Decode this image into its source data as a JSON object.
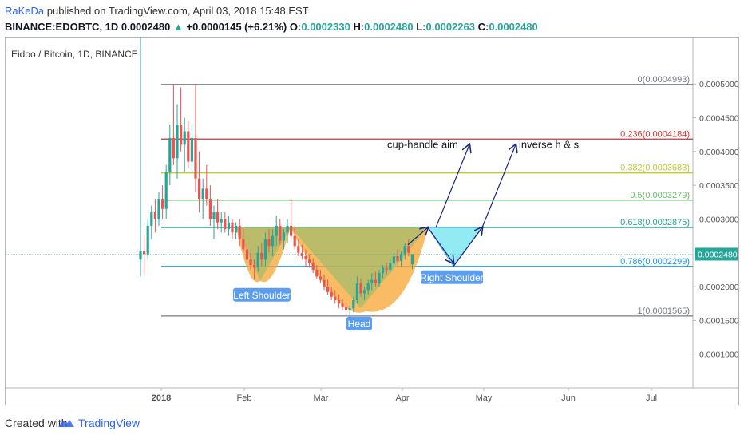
{
  "header": {
    "author": "RaKeDa",
    "published": " published on TradingView.com, April 03, 2018 15:48 EST",
    "symbol": "BINANCE:EDOBTC, 1D",
    "last": "0.0002480",
    "change": "+0.0000145 (+6.21%)",
    "o_label": "O:",
    "o_value": "0.0002330",
    "h_label": "H:",
    "h_value": "0.0002480",
    "l_label": "L:",
    "l_value": "0.0002263",
    "c_label": "C:",
    "c_value": "0.0002480"
  },
  "chart_title": "Eidoo / Bitcoin, 1D, BINANCE",
  "footer": {
    "created": "Created with",
    "brand": "TradingView"
  },
  "colors": {
    "up": "#26a69a",
    "down": "#ef5350",
    "fib0": "#787b86",
    "fib236": "#d32f2f",
    "fib382": "#c0ca33",
    "fib5": "#66bb6a",
    "fib618": "#26a69a",
    "fib786": "#2196f3",
    "fib1": "#787b86",
    "pattern_fill": "#f7a532",
    "cup_fill": "#8fbc6e",
    "handle_fill": "#7fe8f0",
    "arrow": "#1a237e",
    "label_bg": "#5c9ded",
    "price_badge": "#26a69a"
  },
  "chart_data": {
    "type": "candlestick",
    "title": "Eidoo / Bitcoin, 1D, BINANCE",
    "x_ticks": [
      "2018",
      "Feb",
      "Mar",
      "Apr",
      "May",
      "Jun",
      "Jul"
    ],
    "y_ticks": [
      "0.0005000",
      "0.0004500",
      "0.0004000",
      "0.0003500",
      "0.0003000",
      "0.0002000",
      "0.0001500",
      "0.0001000"
    ],
    "y_range": [
      5e-05,
      0.00057
    ],
    "last_price": 0.000248,
    "last_price_label": "0.0002480",
    "fib_levels": [
      {
        "ratio": "0",
        "price": 0.0004993,
        "label": "0(0.0004993)"
      },
      {
        "ratio": "0.236",
        "price": 0.0004184,
        "label": "0.236(0.0004184)"
      },
      {
        "ratio": "0.382",
        "price": 0.0003683,
        "label": "0.382(0.0003683)"
      },
      {
        "ratio": "0.5",
        "price": 0.0003279,
        "label": "0.5(0.0003279)"
      },
      {
        "ratio": "0.618",
        "price": 0.0002875,
        "label": "0.618(0.0002875)"
      },
      {
        "ratio": "0.786",
        "price": 0.0002299,
        "label": "0.786(0.0002299)"
      },
      {
        "ratio": "1",
        "price": 0.0001565,
        "label": "1(0.0001565)"
      }
    ],
    "candles": [
      {
        "o": 0.00024,
        "h": 0.0006,
        "l": 0.000215,
        "c": 0.000252
      },
      {
        "o": 0.000252,
        "h": 0.000275,
        "l": 0.000218,
        "c": 0.000248
      },
      {
        "o": 0.000248,
        "h": 0.0003,
        "l": 0.00024,
        "c": 0.00029
      },
      {
        "o": 0.00029,
        "h": 0.00032,
        "l": 0.00027,
        "c": 0.00031
      },
      {
        "o": 0.00031,
        "h": 0.00033,
        "l": 0.00028,
        "c": 0.0003
      },
      {
        "o": 0.0003,
        "h": 0.00034,
        "l": 0.00029,
        "c": 0.00033
      },
      {
        "o": 0.00033,
        "h": 0.00035,
        "l": 0.0003,
        "c": 0.000315
      },
      {
        "o": 0.000315,
        "h": 0.00038,
        "l": 0.0003,
        "c": 0.00037
      },
      {
        "o": 0.00037,
        "h": 0.00044,
        "l": 0.00035,
        "c": 0.00042
      },
      {
        "o": 0.00042,
        "h": 0.0005,
        "l": 0.00038,
        "c": 0.00039
      },
      {
        "o": 0.00039,
        "h": 0.00047,
        "l": 0.00036,
        "c": 0.00044
      },
      {
        "o": 0.00044,
        "h": 0.000495,
        "l": 0.0004,
        "c": 0.00041
      },
      {
        "o": 0.00041,
        "h": 0.00045,
        "l": 0.00037,
        "c": 0.00043
      },
      {
        "o": 0.00043,
        "h": 0.000445,
        "l": 0.000375,
        "c": 0.000385
      },
      {
        "o": 0.000385,
        "h": 0.00044,
        "l": 0.00037,
        "c": 0.00042
      },
      {
        "o": 0.00042,
        "h": 0.0005,
        "l": 0.00034,
        "c": 0.00036
      },
      {
        "o": 0.00036,
        "h": 0.0004,
        "l": 0.00031,
        "c": 0.00033
      },
      {
        "o": 0.00033,
        "h": 0.00036,
        "l": 0.0003,
        "c": 0.000345
      },
      {
        "o": 0.000345,
        "h": 0.00038,
        "l": 0.00032,
        "c": 0.00033
      },
      {
        "o": 0.00033,
        "h": 0.00035,
        "l": 0.00029,
        "c": 0.0003
      },
      {
        "o": 0.0003,
        "h": 0.00032,
        "l": 0.00027,
        "c": 0.00031
      },
      {
        "o": 0.00031,
        "h": 0.00033,
        "l": 0.000285,
        "c": 0.000295
      },
      {
        "o": 0.000295,
        "h": 0.00031,
        "l": 0.00028,
        "c": 0.0003
      },
      {
        "o": 0.0003,
        "h": 0.00031,
        "l": 0.00028,
        "c": 0.000285
      },
      {
        "o": 0.000285,
        "h": 0.000305,
        "l": 0.000275,
        "c": 0.000295
      },
      {
        "o": 0.000295,
        "h": 0.0003,
        "l": 0.00027,
        "c": 0.00028
      },
      {
        "o": 0.00028,
        "h": 0.000295,
        "l": 0.00027,
        "c": 0.00029
      },
      {
        "o": 0.00029,
        "h": 0.0003,
        "l": 0.00026,
        "c": 0.00027
      },
      {
        "o": 0.00027,
        "h": 0.000285,
        "l": 0.00025,
        "c": 0.000255
      },
      {
        "o": 0.000255,
        "h": 0.000265,
        "l": 0.000235,
        "c": 0.00024
      },
      {
        "o": 0.00024,
        "h": 0.00025,
        "l": 0.000225,
        "c": 0.000232
      },
      {
        "o": 0.000232,
        "h": 0.00024,
        "l": 0.00021,
        "c": 0.000228
      },
      {
        "o": 0.000228,
        "h": 0.00026,
        "l": 0.000222,
        "c": 0.00025
      },
      {
        "o": 0.00025,
        "h": 0.000265,
        "l": 0.00023,
        "c": 0.00024
      },
      {
        "o": 0.00024,
        "h": 0.00028,
        "l": 0.00023,
        "c": 0.00027
      },
      {
        "o": 0.00027,
        "h": 0.000285,
        "l": 0.00025,
        "c": 0.00026
      },
      {
        "o": 0.00026,
        "h": 0.000285,
        "l": 0.000245,
        "c": 0.000275
      },
      {
        "o": 0.000275,
        "h": 0.000305,
        "l": 0.00026,
        "c": 0.00029
      },
      {
        "o": 0.00029,
        "h": 0.0003,
        "l": 0.000262,
        "c": 0.000268
      },
      {
        "o": 0.000268,
        "h": 0.000285,
        "l": 0.000255,
        "c": 0.00028
      },
      {
        "o": 0.00028,
        "h": 0.0003,
        "l": 0.000265,
        "c": 0.00029
      },
      {
        "o": 0.00029,
        "h": 0.00033,
        "l": 0.00027,
        "c": 0.000275
      },
      {
        "o": 0.000275,
        "h": 0.00029,
        "l": 0.000255,
        "c": 0.00026
      },
      {
        "o": 0.00026,
        "h": 0.00027,
        "l": 0.000245,
        "c": 0.00025
      },
      {
        "o": 0.00025,
        "h": 0.000262,
        "l": 0.00024,
        "c": 0.000245
      },
      {
        "o": 0.000245,
        "h": 0.000255,
        "l": 0.00023,
        "c": 0.00024
      },
      {
        "o": 0.00024,
        "h": 0.000248,
        "l": 0.000228,
        "c": 0.000235
      },
      {
        "o": 0.000235,
        "h": 0.000242,
        "l": 0.00022,
        "c": 0.000225
      },
      {
        "o": 0.000225,
        "h": 0.000232,
        "l": 0.000212,
        "c": 0.000215
      },
      {
        "o": 0.000215,
        "h": 0.000225,
        "l": 0.000205,
        "c": 0.00021
      },
      {
        "o": 0.00021,
        "h": 0.000218,
        "l": 0.000195,
        "c": 0.0002
      },
      {
        "o": 0.0002,
        "h": 0.00021,
        "l": 0.000188,
        "c": 0.000192
      },
      {
        "o": 0.000192,
        "h": 0.0002,
        "l": 0.00018,
        "c": 0.000185
      },
      {
        "o": 0.000185,
        "h": 0.000195,
        "l": 0.000175,
        "c": 0.00018
      },
      {
        "o": 0.00018,
        "h": 0.000188,
        "l": 0.000168,
        "c": 0.000175
      },
      {
        "o": 0.000175,
        "h": 0.000182,
        "l": 0.000165,
        "c": 0.00017
      },
      {
        "o": 0.00017,
        "h": 0.000176,
        "l": 0.00016,
        "c": 0.000165
      },
      {
        "o": 0.000165,
        "h": 0.000172,
        "l": 0.000158,
        "c": 0.000168
      },
      {
        "o": 0.000168,
        "h": 0.000185,
        "l": 0.000162,
        "c": 0.00018
      },
      {
        "o": 0.00018,
        "h": 0.000215,
        "l": 0.000175,
        "c": 0.000205
      },
      {
        "o": 0.000205,
        "h": 0.000212,
        "l": 0.000185,
        "c": 0.00019
      },
      {
        "o": 0.00019,
        "h": 0.0002,
        "l": 0.00018,
        "c": 0.000195
      },
      {
        "o": 0.000195,
        "h": 0.00021,
        "l": 0.000188,
        "c": 0.000205
      },
      {
        "o": 0.000205,
        "h": 0.00022,
        "l": 0.000195,
        "c": 0.00021
      },
      {
        "o": 0.00021,
        "h": 0.000222,
        "l": 0.0002,
        "c": 0.000205
      },
      {
        "o": 0.000205,
        "h": 0.000225,
        "l": 0.0002,
        "c": 0.00022
      },
      {
        "o": 0.00022,
        "h": 0.000232,
        "l": 0.000212,
        "c": 0.000228
      },
      {
        "o": 0.000228,
        "h": 0.000235,
        "l": 0.000218,
        "c": 0.000225
      },
      {
        "o": 0.000225,
        "h": 0.00024,
        "l": 0.00022,
        "c": 0.000235
      },
      {
        "o": 0.000235,
        "h": 0.00025,
        "l": 0.000228,
        "c": 0.000245
      },
      {
        "o": 0.000245,
        "h": 0.000255,
        "l": 0.000235,
        "c": 0.000238
      },
      {
        "o": 0.000238,
        "h": 0.000252,
        "l": 0.00023,
        "c": 0.000248
      },
      {
        "o": 0.000248,
        "h": 0.000265,
        "l": 0.00024,
        "c": 0.00026
      },
      {
        "o": 0.00026,
        "h": 0.00027,
        "l": 0.000245,
        "c": 0.00025
      },
      {
        "o": 0.000233,
        "h": 0.000248,
        "l": 0.000226,
        "c": 0.000248
      }
    ],
    "annotations": [
      {
        "type": "label",
        "text": "Left Shoulder"
      },
      {
        "type": "label",
        "text": "Head"
      },
      {
        "type": "label",
        "text": "Right Shoulder"
      },
      {
        "type": "text",
        "text": "cup-handle aim"
      },
      {
        "type": "text",
        "text": "inverse h & s"
      }
    ]
  }
}
